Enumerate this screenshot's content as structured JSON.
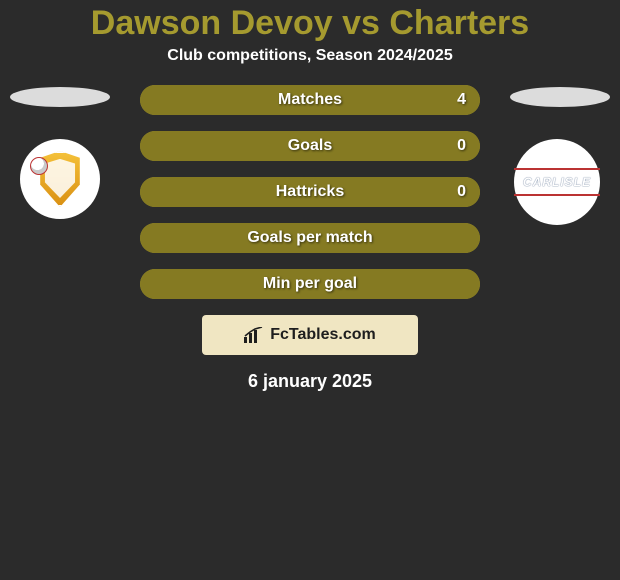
{
  "title": {
    "text": "Dawson Devoy vs Charters",
    "color": "#a59a2f",
    "fontsize": 34
  },
  "subtitle": {
    "text": "Club competitions, Season 2024/2025",
    "fontsize": 16
  },
  "date": {
    "text": "6 january 2025",
    "fontsize": 18
  },
  "brand": {
    "text": "FcTables.com",
    "background": "#f0e6c2",
    "fontsize": 16
  },
  "players": {
    "left": {
      "photo_color": "#dcdcdc"
    },
    "right": {
      "photo_color": "#dcdcdc"
    }
  },
  "teams": {
    "left": {
      "name": "mk-dons",
      "badge_bg": "#ffffff"
    },
    "right": {
      "name": "carlisle",
      "text": "CARLISLE",
      "badge_bg": "#ffffff",
      "inner_bg": "#2a4a7a",
      "text_fontsize": 12
    }
  },
  "bars": {
    "track_color": "#a59a2f",
    "fill_color": "#857a22",
    "border_radius": 16,
    "height": 30,
    "label_fontsize": 16,
    "value_fontsize": 16,
    "items": [
      {
        "label": "Matches",
        "left": "",
        "right": "4",
        "fill_pct": 100
      },
      {
        "label": "Goals",
        "left": "",
        "right": "0",
        "fill_pct": 100
      },
      {
        "label": "Hattricks",
        "left": "",
        "right": "0",
        "fill_pct": 100
      },
      {
        "label": "Goals per match",
        "left": "",
        "right": "",
        "fill_pct": 100
      },
      {
        "label": "Min per goal",
        "left": "",
        "right": "",
        "fill_pct": 100
      }
    ]
  }
}
